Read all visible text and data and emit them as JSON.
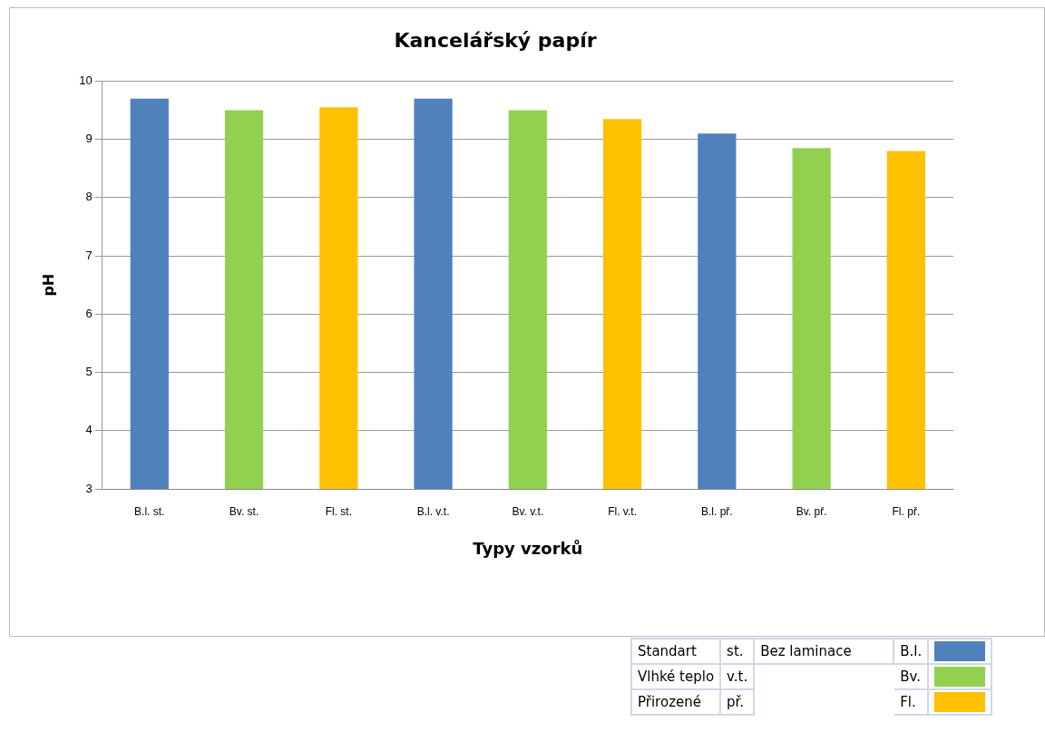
{
  "chart_data": {
    "type": "bar",
    "title": "Kancelářský papír",
    "xlabel": "Typy vzorků",
    "ylabel": "pH",
    "categories": [
      "B.l. st.",
      "Bv. st.",
      "Fl. st.",
      "B.l. v.t.",
      "Bv. v.t.",
      "Fl. v.t.",
      "B.l. př.",
      "Bv. př.",
      "Fl. př."
    ],
    "values": [
      9.7,
      9.5,
      9.55,
      9.7,
      9.5,
      9.35,
      9.1,
      8.85,
      8.8
    ],
    "colors": [
      "#4f81bd",
      "#92d050",
      "#ffc000",
      "#4f81bd",
      "#92d050",
      "#ffc000",
      "#4f81bd",
      "#92d050",
      "#ffc000"
    ],
    "ylim": [
      3,
      10
    ],
    "yticks": [
      3,
      4,
      5,
      6,
      7,
      8,
      9,
      10
    ],
    "grid": "y",
    "legend": false,
    "annotations": [
      "Standart",
      "st.",
      "Vlhké teplo",
      "v.t.",
      "Přirozené",
      "př.",
      "Bez laminace",
      "B.l.",
      "Bv.",
      "Fl."
    ]
  }
}
